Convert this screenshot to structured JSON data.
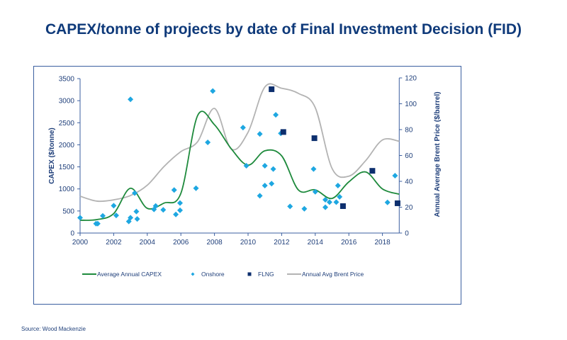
{
  "chart_data": {
    "type": "scatter+line",
    "title": "CAPEX/tonne of projects by date of Final Investment Decision (FID)",
    "source": "Source: Wood Mackenzie",
    "xlabel": "",
    "ylabel": "CAPEX ($/tonne)",
    "y2label": "Annual Average Brent Price ($/barrel)",
    "xlim": [
      2000,
      2019
    ],
    "ylim": [
      0,
      3500
    ],
    "y2lim": [
      0,
      120
    ],
    "xticks": [
      "2000",
      "2002",
      "2004",
      "2006",
      "2008",
      "2010",
      "2012",
      "2014",
      "2016",
      "2018"
    ],
    "yticks": [
      "0",
      "500",
      "1000",
      "1500",
      "2000",
      "2500",
      "3000",
      "3500"
    ],
    "y2ticks": [
      "0",
      "20",
      "40",
      "60",
      "80",
      "100",
      "120"
    ],
    "grid": false,
    "legend_position": "bottom",
    "series": [
      {
        "name": "Average Annual CAPEX",
        "kind": "line",
        "axis": "left",
        "color": "#1e8a3c",
        "x": [
          2000,
          2001,
          2002,
          2003,
          2004,
          2005,
          2006,
          2007,
          2008,
          2009,
          2010,
          2011,
          2012,
          2013,
          2014,
          2015,
          2016,
          2017,
          2018,
          2019
        ],
        "y": [
          290,
          305,
          440,
          1015,
          560,
          680,
          900,
          2665,
          2455,
          1910,
          1540,
          1865,
          1750,
          975,
          980,
          785,
          1160,
          1385,
          1000,
          880
        ]
      },
      {
        "name": "Onshore",
        "kind": "scatter",
        "marker": "diamond",
        "axis": "left",
        "color": "#1ea7e1",
        "x": [
          2000.0,
          2000.95,
          2001.05,
          2001.35,
          2002.0,
          2002.15,
          2002.9,
          2003.0,
          2003.0,
          2003.25,
          2003.35,
          2003.4,
          2004.4,
          2004.5,
          2004.95,
          2005.6,
          2005.7,
          2005.95,
          2005.95,
          2006.9,
          2007.6,
          2007.9,
          2009.7,
          2009.9,
          2010.7,
          2010.7,
          2011.0,
          2011.0,
          2011.4,
          2011.5,
          2011.65,
          2011.95,
          2012.5,
          2013.35,
          2013.9,
          2014.0,
          2014.6,
          2014.6,
          2014.85,
          2015.25,
          2015.35,
          2015.45,
          2018.3,
          2018.75
        ],
        "y": [
          348,
          213,
          213,
          390,
          620,
          400,
          262,
          348,
          3030,
          905,
          487,
          320,
          535,
          615,
          525,
          975,
          422,
          680,
          515,
          1015,
          2055,
          3220,
          2390,
          1525,
          2245,
          845,
          1525,
          1075,
          1120,
          1450,
          2680,
          2260,
          605,
          550,
          1450,
          935,
          755,
          583,
          700,
          700,
          1075,
          820,
          695,
          1300
        ]
      },
      {
        "name": "FLNG",
        "kind": "scatter",
        "marker": "square",
        "axis": "left",
        "color": "#0d2f6e",
        "x": [
          2011.4,
          2012.1,
          2013.95,
          2015.65,
          2017.4,
          2018.9
        ],
        "y": [
          3260,
          2290,
          2150,
          610,
          1410,
          675
        ]
      },
      {
        "name": "Annual Avg Brent Price",
        "kind": "line",
        "axis": "right",
        "color": "#b3b3b3",
        "x": [
          2000,
          2001,
          2002,
          2003,
          2004,
          2005,
          2006,
          2007,
          2008,
          2009,
          2010,
          2011,
          2012,
          2013,
          2014,
          2015,
          2016,
          2017,
          2018,
          2019
        ],
        "y": [
          28.5,
          24.7,
          25.7,
          29,
          37,
          51.5,
          63,
          70.7,
          96.4,
          65,
          78,
          113,
          112,
          108,
          97,
          50,
          44,
          56,
          72,
          71
        ]
      }
    ]
  }
}
